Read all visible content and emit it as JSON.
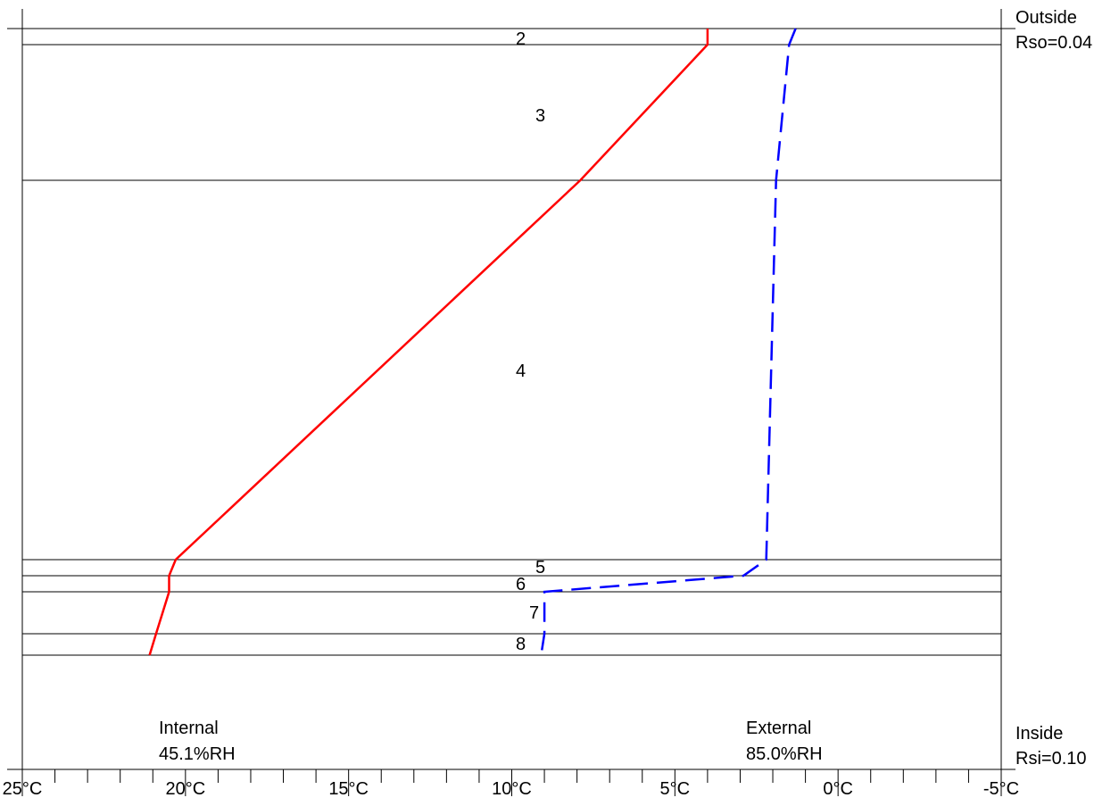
{
  "chart_data": {
    "type": "line",
    "xlabel": "",
    "ylabel": "",
    "x_axis": {
      "unit": "°C",
      "direction": "reversed",
      "xlim": [
        25,
        -5
      ],
      "major_ticks": [
        25,
        20,
        15,
        10,
        5,
        0,
        -5
      ],
      "tick_labels": [
        "25°C",
        "20°C",
        "15°C",
        "10°C",
        "5°C",
        "0°C",
        "-5°C"
      ],
      "minor_tick_step": 1
    },
    "layers": [
      "2",
      "3",
      "4",
      "5",
      "6",
      "7",
      "8"
    ],
    "series": [
      {
        "color": "#ff0000",
        "style": "solid",
        "points": [
          {
            "x": 4.0,
            "at": "outside_surface"
          },
          {
            "x": 4.0,
            "at": "2/3"
          },
          {
            "x": 7.9,
            "at": "3/4"
          },
          {
            "x": 20.3,
            "at": "4/5"
          },
          {
            "x": 20.5,
            "at": "5/6"
          },
          {
            "x": 20.5,
            "at": "6/7"
          },
          {
            "x": 20.9,
            "at": "7/8"
          },
          {
            "x": 21.1,
            "at": "inside_surface"
          }
        ]
      },
      {
        "color": "#0000ff",
        "style": "dashed",
        "points": [
          {
            "x": 1.3,
            "at": "outside_surface"
          },
          {
            "x": 1.5,
            "at": "2/3"
          },
          {
            "x": 1.9,
            "at": "3/4"
          },
          {
            "x": 2.2,
            "at": "4/5"
          },
          {
            "x": 2.9,
            "at": "5/6"
          },
          {
            "x": 9.0,
            "at": "6/7"
          },
          {
            "x": 9.0,
            "at": "7/8"
          },
          {
            "x": 9.1,
            "at": "inside_surface"
          }
        ]
      }
    ]
  },
  "annotations": {
    "outside_title": "Outside",
    "outside_rso": "Rso=0.04",
    "inside_title": "Inside",
    "inside_rsi": "Rsi=0.10",
    "internal_title": "Internal",
    "internal_rh": "45.1%RH",
    "external_title": "External",
    "external_rh": "85.0%RH"
  }
}
